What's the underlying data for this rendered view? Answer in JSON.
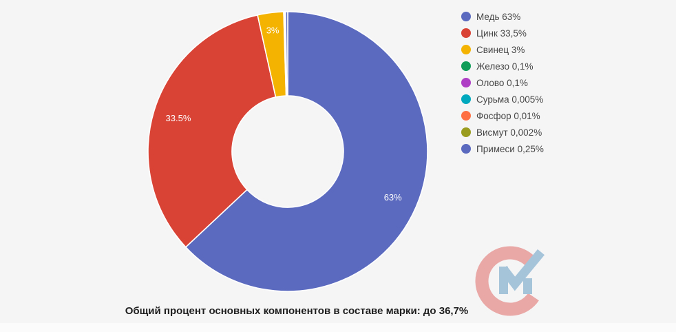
{
  "chart_data": {
    "type": "pie",
    "donut": true,
    "pie_hole": 0.4,
    "legend_position": "right",
    "background_color": "#f5f5f6",
    "slice_label_color": "#fdfdfd",
    "legend_text_color": "#474747",
    "slices": [
      {
        "label": "Медь",
        "value": 63,
        "legend": "Медь 63%",
        "slice_label": "63%",
        "color": "#5b6abf"
      },
      {
        "label": "Цинк",
        "value": 33.5,
        "legend": "Цинк 33,5%",
        "slice_label": "33.5%",
        "color": "#d94336"
      },
      {
        "label": "Свинец",
        "value": 3,
        "legend": "Свинец 3%",
        "slice_label": "3%",
        "color": "#f4b301"
      },
      {
        "label": "Железо",
        "value": 0.1,
        "legend": "Железо 0,1%",
        "slice_label": "",
        "color": "#0f9d58"
      },
      {
        "label": "Олово",
        "value": 0.1,
        "legend": "Олово 0,1%",
        "slice_label": "",
        "color": "#af3fc5"
      },
      {
        "label": "Сурьма",
        "value": 0.005,
        "legend": "Сурьма 0,005%",
        "slice_label": "",
        "color": "#00a9bd"
      },
      {
        "label": "Фосфор",
        "value": 0.01,
        "legend": "Фосфор 0,01%",
        "slice_label": "",
        "color": "#fe7043"
      },
      {
        "label": "Висмут",
        "value": 0.002,
        "legend": "Висмут 0,002%",
        "slice_label": "",
        "color": "#9a9c20"
      },
      {
        "label": "Примеси",
        "value": 0.25,
        "legend": "Примеси 0,25%",
        "slice_label": "",
        "color": "#5b6abf"
      }
    ]
  },
  "caption": "Общий процент основных компонентов в составе марки: до 36,7%",
  "watermark": {
    "c_color": "#e9a7a5",
    "m_color": "#a5c4da"
  }
}
